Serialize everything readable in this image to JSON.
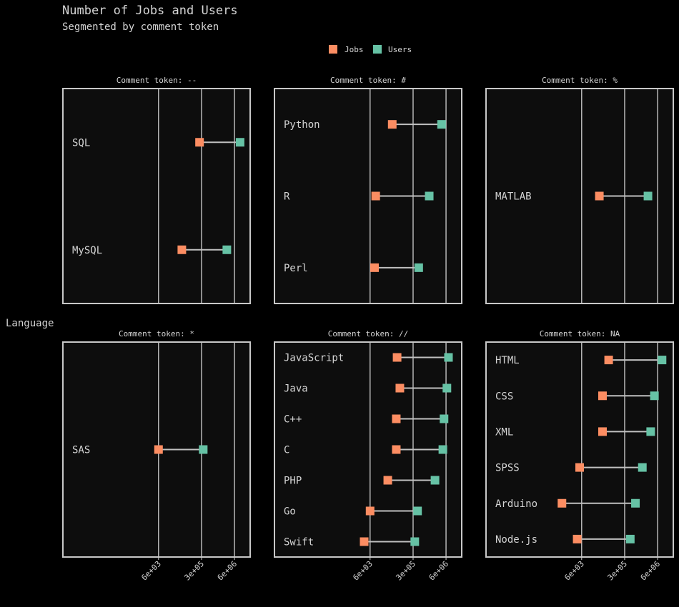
{
  "chart_data": {
    "type": "dumbbell",
    "title": "Number of Jobs and Users",
    "subtitle": "Segmented by comment token",
    "ylabel": "Language",
    "xscale": "log",
    "xlim": [
      1,
      25000000
    ],
    "xticks": [
      {
        "value": 6000,
        "label": "6e+03"
      },
      {
        "value": 300000,
        "label": "3e+05"
      },
      {
        "value": 6000000,
        "label": "6e+06"
      }
    ],
    "facet_prefix": "Comment token: ",
    "legend": {
      "placement": "top-center",
      "items": [
        {
          "key": "jobs",
          "label": "Jobs",
          "color": "#fc8d62"
        },
        {
          "key": "users",
          "label": "Users",
          "color": "#66c2a5"
        }
      ]
    },
    "colors": {
      "background": "#000000",
      "panel": "#0d0d0d",
      "panel_border": "#c8c8c8",
      "grid": "#d0d0d0",
      "segment": "#c0c0c0",
      "text": "#d4d4d4"
    },
    "facets": [
      {
        "token": "--",
        "languages": [
          {
            "name": "SQL",
            "jobs": 250000,
            "users": 10000000
          },
          {
            "name": "MySQL",
            "jobs": 50000,
            "users": 3000000
          }
        ]
      },
      {
        "token": "#",
        "languages": [
          {
            "name": "Python",
            "jobs": 45000,
            "users": 4000000
          },
          {
            "name": "R",
            "jobs": 10000,
            "users": 1300000
          },
          {
            "name": "Perl",
            "jobs": 9000,
            "users": 500000
          }
        ]
      },
      {
        "token": "%",
        "languages": [
          {
            "name": "MATLAB",
            "jobs": 30000,
            "users": 2500000
          }
        ]
      },
      {
        "token": "*",
        "languages": [
          {
            "name": "SAS",
            "jobs": 6000,
            "users": 350000
          }
        ]
      },
      {
        "token": "//",
        "languages": [
          {
            "name": "JavaScript",
            "jobs": 70000,
            "users": 7500000
          },
          {
            "name": "Java",
            "jobs": 90000,
            "users": 6500000
          },
          {
            "name": "C++",
            "jobs": 65000,
            "users": 5000000
          },
          {
            "name": "C",
            "jobs": 65000,
            "users": 4500000
          },
          {
            "name": "PHP",
            "jobs": 30000,
            "users": 2200000
          },
          {
            "name": "Go",
            "jobs": 6000,
            "users": 450000
          },
          {
            "name": "Swift",
            "jobs": 3500,
            "users": 350000
          }
        ]
      },
      {
        "token": "NA",
        "languages": [
          {
            "name": "HTML",
            "jobs": 70000,
            "users": 9000000
          },
          {
            "name": "CSS",
            "jobs": 40000,
            "users": 4500000
          },
          {
            "name": "XML",
            "jobs": 40000,
            "users": 3200000
          },
          {
            "name": "SPSS",
            "jobs": 5000,
            "users": 1500000
          },
          {
            "name": "Arduino",
            "jobs": 1000,
            "users": 800000
          },
          {
            "name": "Node.js",
            "jobs": 4000,
            "users": 500000
          }
        ]
      }
    ]
  }
}
